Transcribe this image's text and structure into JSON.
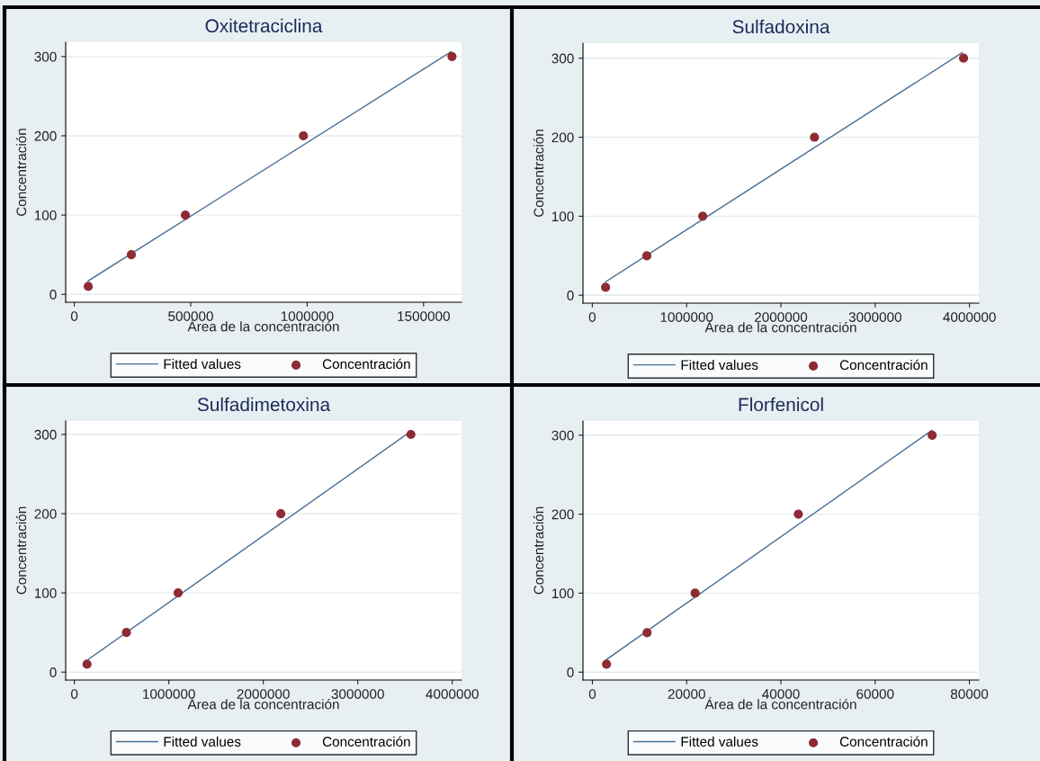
{
  "chart_data": [
    {
      "type": "scatter",
      "title": "Oxitetraciclina",
      "xlabel": "Área de la concentración",
      "ylabel": "Concentración",
      "x": [
        60000,
        245000,
        477000,
        984000,
        1622000
      ],
      "series": [
        {
          "name": "Fitted values",
          "type": "line",
          "marker": "none",
          "color": "#4a6f94",
          "x": [
            60000,
            1618000
          ],
          "values": [
            17,
            306
          ]
        },
        {
          "name": "Concentración",
          "marker": "circle",
          "color": "#8e2b35",
          "values": [
            10,
            50,
            100,
            200,
            300
          ]
        }
      ],
      "xlim": [
        -37000,
        1663000
      ],
      "xticks": [
        0,
        500000,
        1000000,
        1500000
      ],
      "ylim": [
        -10,
        318
      ],
      "yticks": [
        0,
        100,
        200,
        300
      ],
      "grid": "y",
      "legend": "bottom"
    },
    {
      "type": "scatter",
      "title": "Sulfadoxina",
      "xlabel": "Área de la concentración",
      "ylabel": "Concentración",
      "x": [
        141000,
        578000,
        1171000,
        2356000,
        3937000
      ],
      "series": [
        {
          "name": "Fitted values",
          "type": "line",
          "marker": "none",
          "color": "#4a6f94",
          "x": [
            141000,
            3923000
          ],
          "values": [
            17,
            307
          ]
        },
        {
          "name": "Concentración",
          "marker": "circle",
          "color": "#8e2b35",
          "values": [
            10,
            50,
            100,
            200,
            300
          ]
        }
      ],
      "xlim": [
        -99000,
        4099000
      ],
      "xticks": [
        0,
        1000000,
        2000000,
        3000000,
        4000000
      ],
      "ylim": [
        -10,
        319
      ],
      "yticks": [
        0,
        100,
        200,
        300
      ],
      "grid": "y",
      "legend": "bottom"
    },
    {
      "type": "scatter",
      "title": "Sulfadimetoxina",
      "xlabel": "Área de la concentración",
      "ylabel": "Concentración",
      "x": [
        134000,
        551000,
        1098000,
        2185000,
        3562000
      ],
      "series": [
        {
          "name": "Fitted values",
          "type": "line",
          "marker": "none",
          "color": "#4a6f94",
          "x": [
            134000,
            3551000
          ],
          "values": [
            15,
            303
          ]
        },
        {
          "name": "Concentración",
          "marker": "circle",
          "color": "#8e2b35",
          "values": [
            10,
            50,
            100,
            200,
            300
          ]
        }
      ],
      "xlim": [
        -92000,
        4098000
      ],
      "xticks": [
        0,
        1000000,
        2000000,
        3000000,
        4000000
      ],
      "ylim": [
        -10,
        317
      ],
      "yticks": [
        0,
        100,
        200,
        300
      ],
      "grid": "y",
      "legend": "bottom"
    },
    {
      "type": "scatter",
      "title": "Florfenicol",
      "xlabel": "Área de la concentración",
      "ylabel": "Concentración",
      "x": [
        3000,
        11600,
        21800,
        43700,
        72100
      ],
      "series": [
        {
          "name": "Fitted values",
          "type": "line",
          "marker": "none",
          "color": "#4a6f94",
          "x": [
            3000,
            72000
          ],
          "values": [
            16,
            306
          ]
        },
        {
          "name": "Concentración",
          "marker": "circle",
          "color": "#8e2b35",
          "values": [
            10,
            50,
            100,
            200,
            300
          ]
        }
      ],
      "xlim": [
        -2000,
        82000
      ],
      "xticks": [
        0,
        20000,
        40000,
        60000,
        80000
      ],
      "ylim": [
        -10,
        318
      ],
      "yticks": [
        0,
        100,
        200,
        300
      ],
      "grid": "y",
      "legend": "bottom"
    }
  ]
}
